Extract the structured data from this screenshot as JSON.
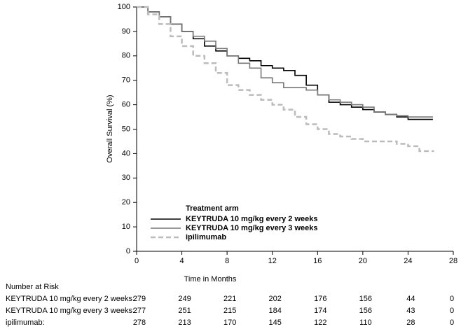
{
  "chart_data": {
    "type": "step",
    "x_label": "Time in Months",
    "y_label": "Overall Survival (%)",
    "xlim": [
      0,
      28
    ],
    "xticks": [
      0,
      4,
      8,
      12,
      16,
      20,
      24,
      28
    ],
    "ylim": [
      0,
      100
    ],
    "yticks": [
      0,
      10,
      20,
      30,
      40,
      50,
      60,
      70,
      80,
      90,
      100
    ],
    "grid": false,
    "legend_title": "Treatment arm",
    "legend_position": "lower-left",
    "series": [
      {
        "name": "KEYTRUDA 10 mg/kg every 2 weeks",
        "color": "#000000",
        "dashed": false,
        "x": [
          0,
          1,
          2,
          3,
          4,
          5,
          6,
          7,
          8,
          9,
          10,
          11,
          12,
          13,
          14,
          15,
          16,
          17,
          18,
          19,
          20,
          21,
          22,
          23,
          24,
          25,
          26.2
        ],
        "values": [
          100,
          98,
          96,
          93,
          90,
          87,
          84,
          82,
          80,
          79,
          78,
          76,
          75,
          74,
          72,
          68,
          64,
          61,
          60,
          59,
          58,
          57,
          56,
          55,
          54,
          54,
          54
        ]
      },
      {
        "name": "KEYTRUDA 10 mg/kg every 3 weeks",
        "color": "#777777",
        "dashed": false,
        "x": [
          0,
          1,
          2,
          3,
          4,
          5,
          6,
          7,
          8,
          9,
          10,
          11,
          12,
          13,
          14,
          15,
          16,
          17,
          18,
          19,
          20,
          21,
          22,
          23,
          24,
          25,
          26.2
        ],
        "values": [
          100,
          98,
          96,
          93,
          90,
          88,
          86,
          83,
          80,
          77,
          75,
          71,
          69,
          67,
          67,
          66,
          64,
          62,
          61,
          60,
          59,
          57,
          56,
          55.5,
          55,
          55,
          55
        ]
      },
      {
        "name": "ipilimumab",
        "color": "#bbbbbb",
        "dashed": true,
        "x": [
          0,
          1,
          2,
          3,
          4,
          5,
          6,
          7,
          8,
          9,
          10,
          11,
          12,
          13,
          14,
          15,
          16,
          17,
          18,
          19,
          20,
          21,
          22,
          23,
          24,
          25,
          26.3
        ],
        "values": [
          100,
          97,
          93,
          88,
          84,
          80,
          77,
          73,
          68,
          66,
          64,
          62,
          60,
          58,
          55,
          52,
          50,
          48,
          47,
          46,
          45,
          45,
          45,
          44,
          43,
          41,
          41
        ]
      }
    ]
  },
  "risk_table": {
    "title": "Number at Risk",
    "rows": [
      {
        "label": "KEYTRUDA 10 mg/kg every 2 weeks:",
        "values": [
          279,
          249,
          221,
          202,
          176,
          156,
          44,
          0
        ]
      },
      {
        "label": "KEYTRUDA 10 mg/kg every 3 weeks:",
        "values": [
          277,
          251,
          215,
          184,
          174,
          156,
          43,
          0
        ]
      },
      {
        "label": "ipilimumab:",
        "values": [
          278,
          213,
          170,
          145,
          122,
          110,
          28,
          0
        ]
      }
    ]
  }
}
